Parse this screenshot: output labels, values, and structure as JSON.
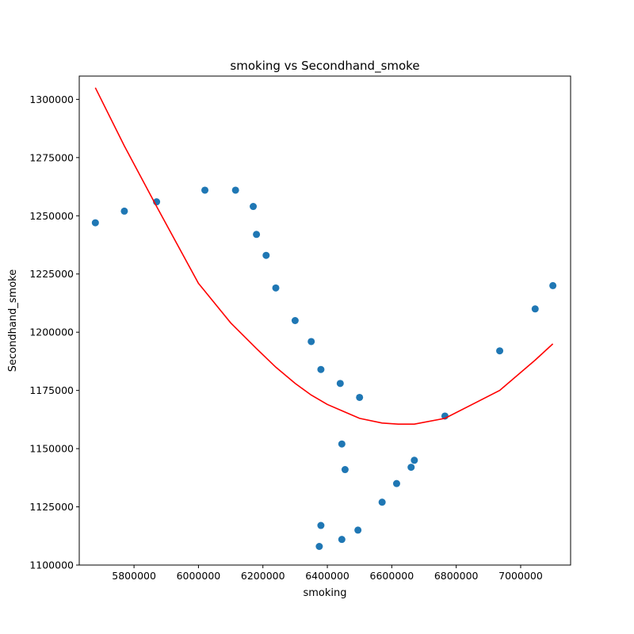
{
  "chart_data": {
    "type": "scatter",
    "title": "smoking vs Secondhand_smoke",
    "xlabel": "smoking",
    "ylabel": "Secondhand_smoke",
    "xlim": [
      5630000,
      7155000
    ],
    "ylim": [
      1100000,
      1310000
    ],
    "xticks": [
      5800000,
      6000000,
      6200000,
      6400000,
      6600000,
      6800000,
      7000000
    ],
    "xtick_labels": [
      "5800000",
      "6000000",
      "6200000",
      "6400000",
      "6600000",
      "6800000",
      "7000000"
    ],
    "yticks": [
      1100000,
      1125000,
      1150000,
      1175000,
      1200000,
      1225000,
      1250000,
      1275000,
      1300000
    ],
    "ytick_labels": [
      "1100000",
      "1125000",
      "1150000",
      "1175000",
      "1200000",
      "1225000",
      "1250000",
      "1275000",
      "1300000"
    ],
    "grid": false,
    "colors": {
      "points": "#1f77b4",
      "fit": "#ff0000"
    },
    "series": [
      {
        "type": "scatter",
        "x": [
          5680000,
          5770000,
          5870000,
          6020000,
          6115000,
          6170000,
          6180000,
          6210000,
          6240000,
          6300000,
          6350000,
          6380000,
          6440000,
          6500000,
          6445000,
          6455000,
          6380000,
          6375000,
          6445000,
          6495000,
          6570000,
          6615000,
          6660000,
          6670000,
          6765000,
          6935000,
          7045000,
          7100000
        ],
        "y": [
          1247000,
          1252000,
          1256000,
          1261000,
          1261000,
          1254000,
          1242000,
          1233000,
          1219000,
          1205000,
          1196000,
          1184000,
          1178000,
          1172000,
          1152000,
          1141000,
          1117000,
          1108000,
          1111000,
          1115000,
          1127000,
          1135000,
          1142000,
          1145000,
          1164000,
          1192000,
          1210000,
          1220000
        ]
      },
      {
        "type": "line",
        "x": [
          5680000,
          5770000,
          5870000,
          6000000,
          6100000,
          6180000,
          6240000,
          6300000,
          6350000,
          6400000,
          6450000,
          6500000,
          6570000,
          6620000,
          6670000,
          6765000,
          6935000,
          7045000,
          7100000
        ],
        "y": [
          1305000,
          1280000,
          1254000,
          1221000,
          1204000,
          1193000,
          1185000,
          1178000,
          1173000,
          1169000,
          1166000,
          1163000,
          1161000,
          1160500,
          1160500,
          1163000,
          1175000,
          1188000,
          1195000
        ]
      }
    ]
  }
}
